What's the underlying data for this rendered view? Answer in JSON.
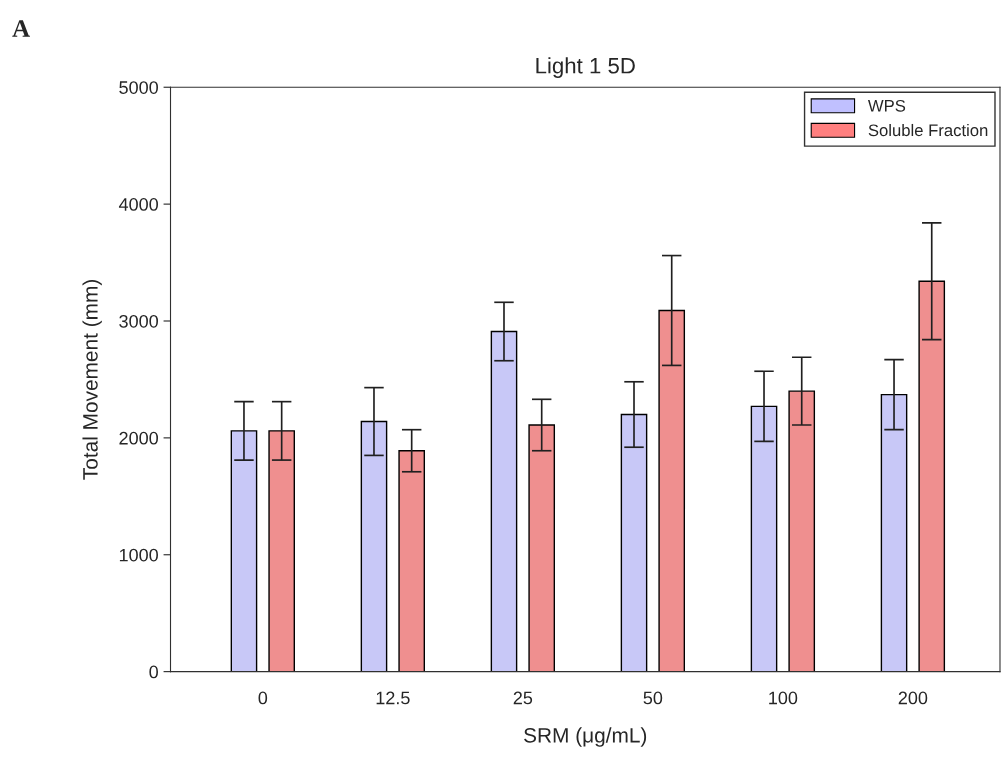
{
  "chart_data": {
    "type": "bar",
    "title": "Light 1 5D",
    "xlabel": "SRM (μg/mL)",
    "ylabel": "Total Movement (mm)",
    "annotations": [
      "A"
    ],
    "categories": [
      "0",
      "12.5",
      "25",
      "50",
      "100",
      "200"
    ],
    "series": [
      {
        "name": "WPS",
        "color": "#c0c0ff",
        "values": [
          2060,
          2140,
          2910,
          2200,
          2270,
          2370
        ],
        "errors": [
          250,
          290,
          250,
          280,
          300,
          300
        ]
      },
      {
        "name": "Soluble Fraction",
        "color": "#ff7f7f",
        "values": [
          2060,
          1890,
          2110,
          3090,
          2400,
          3340
        ],
        "errors": [
          250,
          180,
          220,
          470,
          290,
          500
        ]
      }
    ],
    "ylim": [
      0,
      5000
    ],
    "yticks": [
      0,
      1000,
      2000,
      3000,
      4000,
      5000
    ],
    "grid": false,
    "legend": "top right"
  }
}
